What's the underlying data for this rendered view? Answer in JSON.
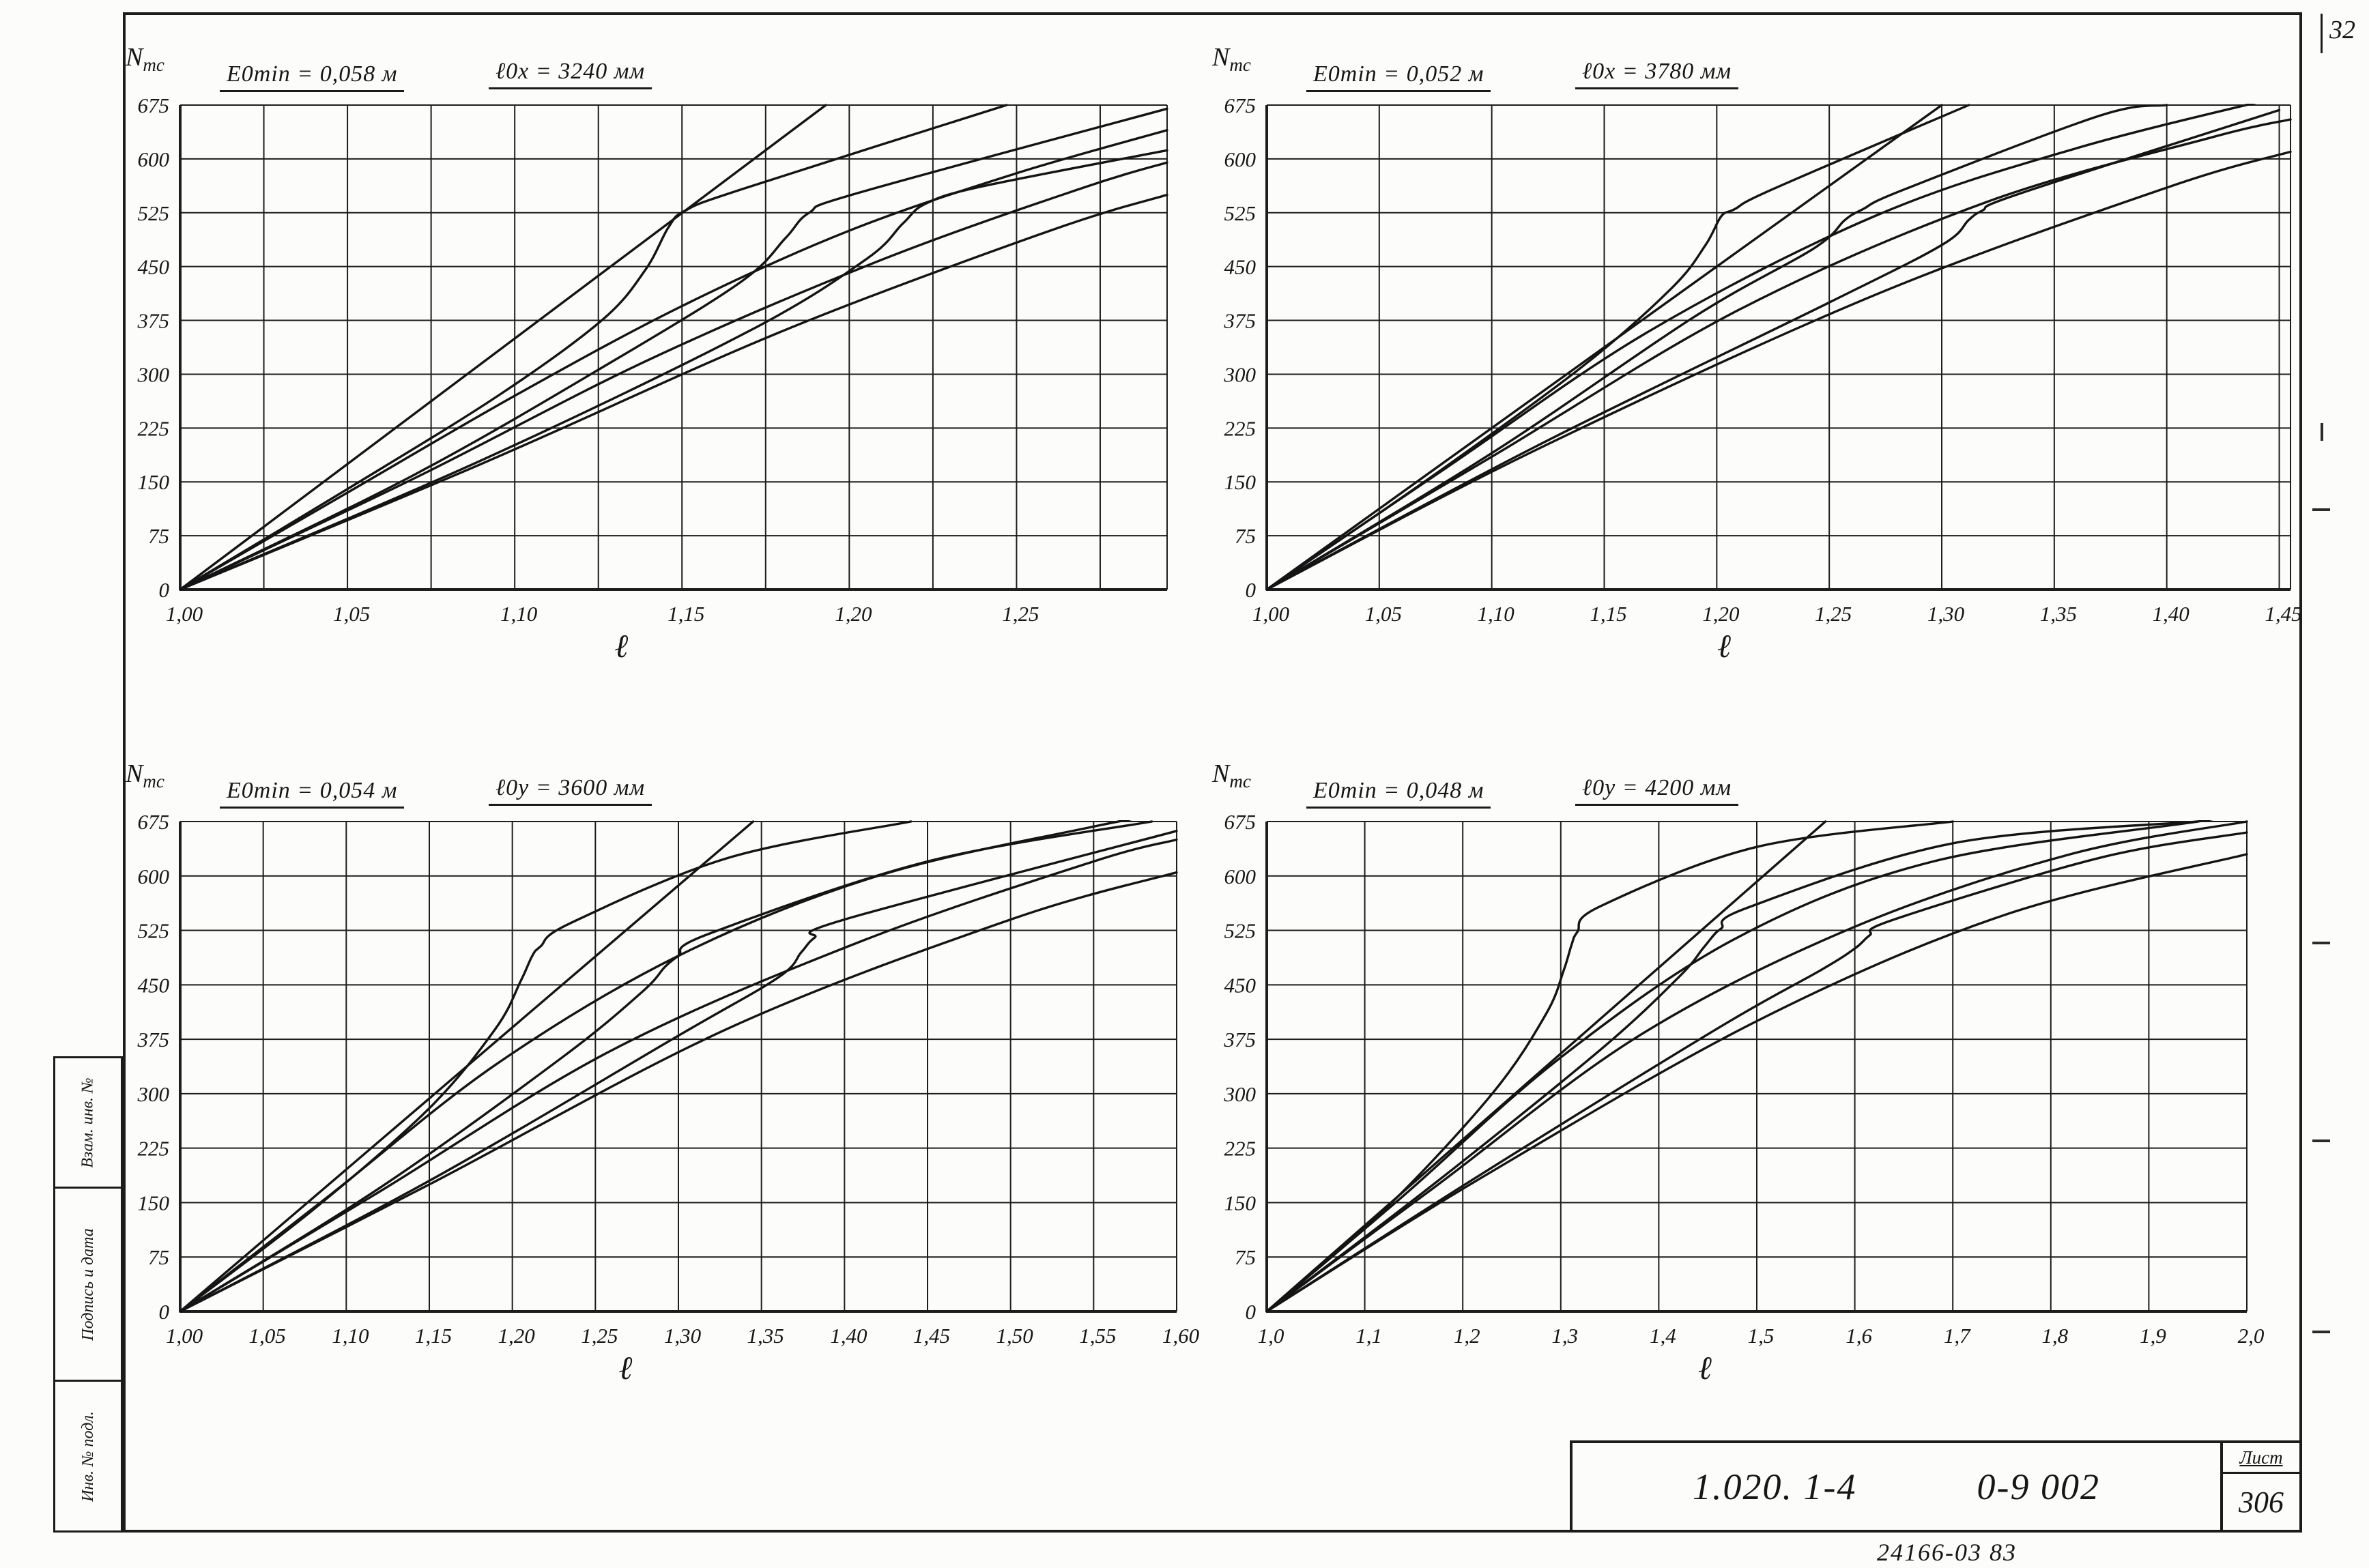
{
  "page": {
    "corner_number": "32",
    "stamp": {
      "code_left": "1.020. 1-4",
      "code_right": "0-9 002",
      "sheet_label": "Лист",
      "sheet_number": "306",
      "below_note": "24166-03  83"
    },
    "margin_labels": {
      "top": "Взам. инв. №",
      "middle": "Подпись и дата",
      "bottom": "Инв. № подл."
    }
  },
  "chart_data": [
    {
      "type": "line",
      "title_e0min": "E0min = 0,058 м",
      "title_length": "ℓ0x = 3240 мм",
      "y_title_main": "N",
      "y_title_sub": "тс",
      "xlabel": "ℓ",
      "ylim": [
        0,
        675
      ],
      "yticks": [
        0,
        75,
        150,
        225,
        300,
        375,
        450,
        525,
        600,
        675
      ],
      "ytick_labels": [
        "0",
        "75",
        "150",
        "225",
        "300",
        "375",
        "450",
        "525",
        "600",
        "675"
      ],
      "xlim": [
        1.0,
        1.295
      ],
      "grid_step_x": 0.025,
      "xticks": [
        1.0,
        1.05,
        1.1,
        1.15,
        1.2,
        1.25
      ],
      "xtick_labels": [
        "1,00",
        "1,05",
        "1,10",
        "1,15",
        "1,20",
        "1,25"
      ],
      "legend": "none",
      "grid": true,
      "series": [
        {
          "name": "envelope-steep",
          "points": [
            [
              1.0,
              0
            ],
            [
              1.193,
              675
            ]
          ]
        },
        {
          "name": "hook-1",
          "points": [
            [
              1.0,
              0
            ],
            [
              1.05,
              140
            ],
            [
              1.095,
              270
            ],
            [
              1.126,
              375
            ],
            [
              1.139,
              445
            ],
            [
              1.146,
              505
            ],
            [
              1.151,
              528
            ],
            [
              1.168,
              558
            ],
            [
              1.247,
              675
            ]
          ]
        },
        {
          "name": "branch-1",
          "points": [
            [
              1.0,
              0
            ],
            [
              1.05,
              135
            ],
            [
              1.1,
              270
            ],
            [
              1.15,
              395
            ],
            [
              1.2,
              500
            ],
            [
              1.25,
              580
            ],
            [
              1.295,
              640
            ]
          ]
        },
        {
          "name": "hook-2",
          "points": [
            [
              1.0,
              0
            ],
            [
              1.07,
              160
            ],
            [
              1.13,
              320
            ],
            [
              1.168,
              430
            ],
            [
              1.181,
              490
            ],
            [
              1.188,
              525
            ],
            [
              1.203,
              553
            ],
            [
              1.295,
              670
            ]
          ]
        },
        {
          "name": "branch-2",
          "points": [
            [
              1.0,
              0
            ],
            [
              1.07,
              155
            ],
            [
              1.14,
              320
            ],
            [
              1.21,
              460
            ],
            [
              1.27,
              560
            ],
            [
              1.295,
              595
            ]
          ]
        },
        {
          "name": "hook-3",
          "points": [
            [
              1.0,
              0
            ],
            [
              1.09,
              180
            ],
            [
              1.17,
              360
            ],
            [
              1.205,
              460
            ],
            [
              1.216,
              510
            ],
            [
              1.223,
              538
            ],
            [
              1.24,
              562
            ],
            [
              1.295,
              612
            ]
          ]
        },
        {
          "name": "branch-3",
          "points": [
            [
              1.0,
              0
            ],
            [
              1.09,
              175
            ],
            [
              1.18,
              360
            ],
            [
              1.26,
              500
            ],
            [
              1.295,
              550
            ]
          ]
        }
      ]
    },
    {
      "type": "line",
      "title_e0min": "E0min = 0,052 м",
      "title_length": "ℓ0x = 3780 мм",
      "y_title_main": "N",
      "y_title_sub": "тс",
      "xlabel": "ℓ",
      "ylim": [
        0,
        675
      ],
      "yticks": [
        0,
        75,
        150,
        225,
        300,
        375,
        450,
        525,
        600,
        675
      ],
      "ytick_labels": [
        "0",
        "75",
        "150",
        "225",
        "300",
        "375",
        "450",
        "525",
        "600",
        "675"
      ],
      "xlim": [
        1.0,
        1.455
      ],
      "grid_step_x": 0.05,
      "xticks": [
        1.0,
        1.05,
        1.1,
        1.15,
        1.2,
        1.25,
        1.3,
        1.35,
        1.4,
        1.45
      ],
      "xtick_labels": [
        "1,00",
        "1,05",
        "1,10",
        "1,15",
        "1,20",
        "1,25",
        "1,30",
        "1,35",
        "1,40",
        "1,45"
      ],
      "legend": "none",
      "grid": true,
      "series": [
        {
          "name": "envelope-steep",
          "points": [
            [
              1.0,
              0
            ],
            [
              1.3,
              675
            ]
          ]
        },
        {
          "name": "hook-1",
          "points": [
            [
              1.0,
              0
            ],
            [
              1.07,
              150
            ],
            [
              1.14,
              310
            ],
            [
              1.18,
              420
            ],
            [
              1.195,
              480
            ],
            [
              1.202,
              520
            ],
            [
              1.208,
              530
            ],
            [
              1.225,
              558
            ],
            [
              1.312,
              675
            ]
          ]
        },
        {
          "name": "branch-1",
          "points": [
            [
              1.0,
              0
            ],
            [
              1.08,
              170
            ],
            [
              1.17,
              360
            ],
            [
              1.27,
              520
            ],
            [
              1.36,
              615
            ],
            [
              1.455,
              690
            ]
          ]
        },
        {
          "name": "hook-2",
          "points": [
            [
              1.0,
              0
            ],
            [
              1.1,
              190
            ],
            [
              1.19,
              380
            ],
            [
              1.243,
              475
            ],
            [
              1.257,
              515
            ],
            [
              1.265,
              530
            ],
            [
              1.283,
              557
            ],
            [
              1.37,
              660
            ],
            [
              1.4,
              675
            ]
          ]
        },
        {
          "name": "branch-2",
          "points": [
            [
              1.0,
              0
            ],
            [
              1.1,
              185
            ],
            [
              1.21,
              390
            ],
            [
              1.32,
              540
            ],
            [
              1.42,
              630
            ],
            [
              1.455,
              655
            ]
          ]
        },
        {
          "name": "hook-3",
          "points": [
            [
              1.0,
              0
            ],
            [
              1.12,
              200
            ],
            [
              1.25,
              400
            ],
            [
              1.3,
              480
            ],
            [
              1.312,
              515
            ],
            [
              1.318,
              528
            ],
            [
              1.335,
              552
            ],
            [
              1.45,
              668
            ]
          ]
        },
        {
          "name": "branch-3",
          "points": [
            [
              1.0,
              0
            ],
            [
              1.12,
              195
            ],
            [
              1.27,
              410
            ],
            [
              1.4,
              560
            ],
            [
              1.455,
              610
            ]
          ]
        }
      ]
    },
    {
      "type": "line",
      "title_e0min": "E0min = 0,054 м",
      "title_length": "ℓ0y = 3600 мм",
      "y_title_main": "N",
      "y_title_sub": "тс",
      "xlabel": "ℓ",
      "ylim": [
        0,
        675
      ],
      "yticks": [
        0,
        75,
        150,
        225,
        300,
        375,
        450,
        525,
        600,
        675
      ],
      "ytick_labels": [
        "0",
        "75",
        "150",
        "225",
        "300",
        "375",
        "450",
        "525",
        "600",
        "675"
      ],
      "xlim": [
        1.0,
        1.6
      ],
      "grid_step_x": 0.05,
      "xticks": [
        1.0,
        1.05,
        1.1,
        1.15,
        1.2,
        1.25,
        1.3,
        1.35,
        1.4,
        1.45,
        1.5,
        1.55,
        1.6
      ],
      "xtick_labels": [
        "1,00",
        "1,05",
        "1,10",
        "1,15",
        "1,20",
        "1,25",
        "1,30",
        "1,35",
        "1,40",
        "1,45",
        "1,50",
        "1,55",
        "1,60"
      ],
      "legend": "none",
      "grid": true,
      "series": [
        {
          "name": "envelope-steep",
          "points": [
            [
              1.0,
              0
            ],
            [
              1.345,
              675
            ]
          ]
        },
        {
          "name": "hook-1",
          "points": [
            [
              1.0,
              0
            ],
            [
              1.08,
              140
            ],
            [
              1.15,
              280
            ],
            [
              1.19,
              390
            ],
            [
              1.205,
              455
            ],
            [
              1.212,
              490
            ],
            [
              1.217,
              503
            ],
            [
              1.235,
              535
            ],
            [
              1.33,
              625
            ],
            [
              1.44,
              675
            ]
          ]
        },
        {
          "name": "branch-1",
          "points": [
            [
              1.0,
              0
            ],
            [
              1.09,
              160
            ],
            [
              1.19,
              340
            ],
            [
              1.3,
              490
            ],
            [
              1.42,
              600
            ],
            [
              1.55,
              668
            ],
            [
              1.6,
              688
            ]
          ]
        },
        {
          "name": "hook-2",
          "points": [
            [
              1.0,
              0
            ],
            [
              1.12,
              170
            ],
            [
              1.23,
              350
            ],
            [
              1.278,
              440
            ],
            [
              1.292,
              475
            ],
            [
              1.3,
              490
            ],
            [
              1.318,
              520
            ],
            [
              1.45,
              620
            ],
            [
              1.585,
              675
            ]
          ]
        },
        {
          "name": "branch-2",
          "points": [
            [
              1.0,
              0
            ],
            [
              1.12,
              165
            ],
            [
              1.26,
              360
            ],
            [
              1.41,
              510
            ],
            [
              1.55,
              620
            ],
            [
              1.6,
              650
            ]
          ]
        },
        {
          "name": "hook-3",
          "points": [
            [
              1.0,
              0
            ],
            [
              1.15,
              180
            ],
            [
              1.3,
              380
            ],
            [
              1.36,
              460
            ],
            [
              1.374,
              495
            ],
            [
              1.382,
              515
            ],
            [
              1.4,
              540
            ],
            [
              1.6,
              662
            ]
          ]
        },
        {
          "name": "branch-3",
          "points": [
            [
              1.0,
              0
            ],
            [
              1.15,
              175
            ],
            [
              1.33,
              390
            ],
            [
              1.5,
              540
            ],
            [
              1.6,
              605
            ]
          ]
        }
      ]
    },
    {
      "type": "line",
      "title_e0min": "E0min = 0,048 м",
      "title_length": "ℓ0y = 4200 мм",
      "y_title_main": "N",
      "y_title_sub": "тс",
      "xlabel": "ℓ",
      "ylim": [
        0,
        675
      ],
      "yticks": [
        0,
        75,
        150,
        225,
        300,
        375,
        450,
        525,
        600,
        675
      ],
      "ytick_labels": [
        "0",
        "75",
        "150",
        "225",
        "300",
        "375",
        "450",
        "525",
        "600",
        "675"
      ],
      "xlim": [
        1.0,
        2.0
      ],
      "grid_step_x": 0.1,
      "xticks": [
        1.0,
        1.1,
        1.2,
        1.3,
        1.4,
        1.5,
        1.6,
        1.7,
        1.8,
        1.9,
        2.0
      ],
      "xtick_labels": [
        "1,0",
        "1,1",
        "1,2",
        "1,3",
        "1,4",
        "1,5",
        "1,6",
        "1,7",
        "1,8",
        "1,9",
        "2,0"
      ],
      "legend": "none",
      "grid": true,
      "series": [
        {
          "name": "envelope-steep",
          "points": [
            [
              1.0,
              0
            ],
            [
              1.57,
              675
            ]
          ]
        },
        {
          "name": "hook-1",
          "points": [
            [
              1.0,
              0
            ],
            [
              1.12,
              140
            ],
            [
              1.23,
              300
            ],
            [
              1.285,
              410
            ],
            [
              1.303,
              470
            ],
            [
              1.311,
              505
            ],
            [
              1.317,
              523
            ],
            [
              1.34,
              558
            ],
            [
              1.5,
              640
            ],
            [
              1.7,
              675
            ]
          ]
        },
        {
          "name": "branch-1",
          "points": [
            [
              1.0,
              0
            ],
            [
              1.14,
              160
            ],
            [
              1.3,
              350
            ],
            [
              1.48,
              515
            ],
            [
              1.68,
              620
            ],
            [
              1.95,
              675
            ],
            [
              2.0,
              688
            ]
          ]
        },
        {
          "name": "hook-2",
          "points": [
            [
              1.0,
              0
            ],
            [
              1.17,
              175
            ],
            [
              1.34,
              360
            ],
            [
              1.42,
              460
            ],
            [
              1.445,
              500
            ],
            [
              1.457,
              520
            ],
            [
              1.464,
              528
            ],
            [
              1.49,
              556
            ],
            [
              1.7,
              645
            ],
            [
              1.95,
              675
            ]
          ]
        },
        {
          "name": "branch-2",
          "points": [
            [
              1.0,
              0
            ],
            [
              1.17,
              170
            ],
            [
              1.38,
              380
            ],
            [
              1.6,
              530
            ],
            [
              1.82,
              630
            ],
            [
              2.0,
              675
            ]
          ]
        },
        {
          "name": "hook-3",
          "points": [
            [
              1.0,
              0
            ],
            [
              1.22,
              190
            ],
            [
              1.46,
              390
            ],
            [
              1.565,
              470
            ],
            [
              1.6,
              500
            ],
            [
              1.615,
              518
            ],
            [
              1.64,
              540
            ],
            [
              1.85,
              625
            ],
            [
              2.0,
              660
            ]
          ]
        },
        {
          "name": "branch-3",
          "points": [
            [
              1.0,
              0
            ],
            [
              1.22,
              185
            ],
            [
              1.5,
              400
            ],
            [
              1.75,
              545
            ],
            [
              2.0,
              630
            ]
          ]
        }
      ]
    }
  ]
}
